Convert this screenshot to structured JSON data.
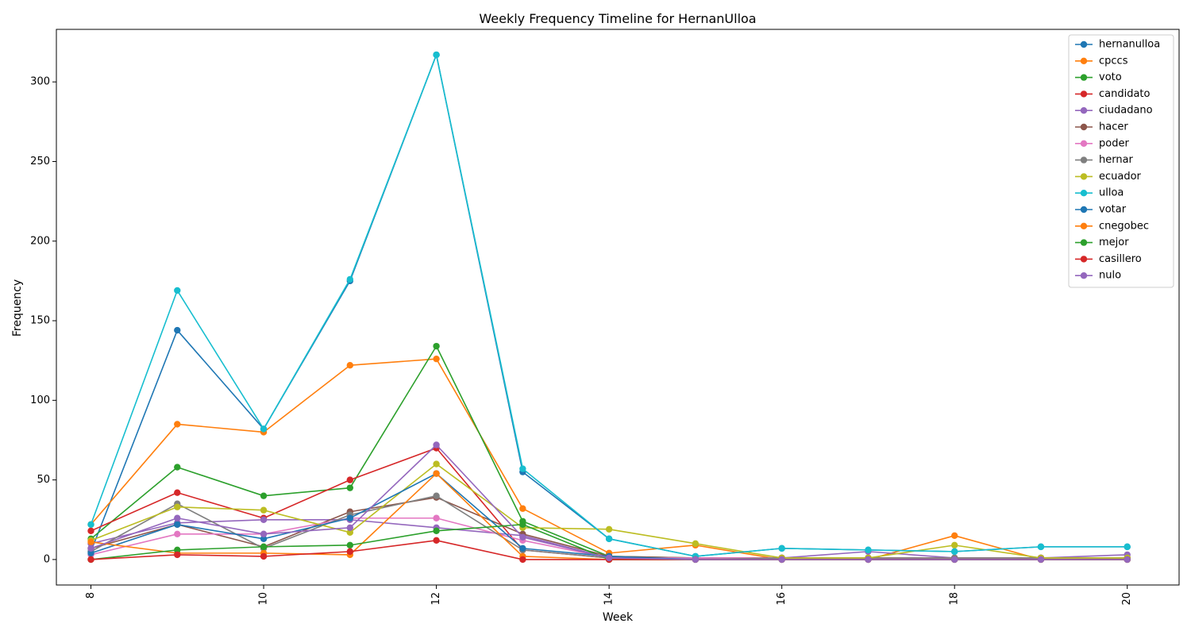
{
  "chart_data": {
    "type": "line",
    "title": "Weekly Frequency Timeline for HernanUlloa",
    "xlabel": "Week",
    "ylabel": "Frequency",
    "x": [
      8,
      9,
      10,
      11,
      12,
      13,
      14,
      15,
      16,
      17,
      18,
      19,
      20
    ],
    "xlim": [
      7.6,
      20.6
    ],
    "ylim": [
      -16,
      333
    ],
    "x_ticks": [
      8,
      10,
      12,
      14,
      16,
      18,
      20
    ],
    "y_ticks": [
      0,
      50,
      100,
      150,
      200,
      250,
      300
    ],
    "x_tick_rotation": "vertical",
    "grid": false,
    "legend_position": "top-right",
    "marker": "circle",
    "series": [
      {
        "name": "hernanulloa",
        "color": "#1f77b4",
        "values": [
          5,
          144,
          82,
          175,
          317,
          55,
          13,
          2,
          7,
          6,
          5,
          8,
          8
        ]
      },
      {
        "name": "cpccs",
        "color": "#ff7f0e",
        "values": [
          22,
          85,
          80,
          122,
          126,
          32,
          4,
          9,
          0,
          0,
          15,
          0,
          0
        ]
      },
      {
        "name": "voto",
        "color": "#2ca02c",
        "values": [
          13,
          58,
          40,
          45,
          134,
          24,
          2,
          1,
          1,
          1,
          1,
          1,
          1
        ]
      },
      {
        "name": "candidato",
        "color": "#d62728",
        "values": [
          18,
          42,
          26,
          50,
          70,
          6,
          1,
          1,
          1,
          1,
          1,
          1,
          1
        ]
      },
      {
        "name": "ciudadano",
        "color": "#9467bd",
        "values": [
          10,
          23,
          25,
          25,
          20,
          15,
          1,
          1,
          1,
          5,
          1,
          1,
          3
        ]
      },
      {
        "name": "hacer",
        "color": "#8c564b",
        "values": [
          7,
          22,
          8,
          30,
          39,
          16,
          2,
          1,
          1,
          1,
          1,
          1,
          1
        ]
      },
      {
        "name": "poder",
        "color": "#e377c2",
        "values": [
          3,
          16,
          16,
          26,
          26,
          12,
          1,
          1,
          1,
          1,
          1,
          1,
          1
        ]
      },
      {
        "name": "hernar",
        "color": "#7f7f7f",
        "values": [
          5,
          35,
          7,
          28,
          40,
          6,
          1,
          0,
          1,
          1,
          1,
          1,
          1
        ]
      },
      {
        "name": "ecuador",
        "color": "#bcbd22",
        "values": [
          12,
          33,
          31,
          17,
          60,
          20,
          19,
          10,
          1,
          1,
          9,
          1,
          1
        ]
      },
      {
        "name": "ulloa",
        "color": "#17becf",
        "values": [
          22,
          169,
          82,
          176,
          317,
          57,
          13,
          2,
          7,
          6,
          5,
          8,
          8
        ]
      },
      {
        "name": "votar",
        "color": "#1f77b4",
        "values": [
          4,
          22,
          13,
          26,
          54,
          7,
          2,
          0,
          0,
          0,
          0,
          0,
          0
        ]
      },
      {
        "name": "cnegobec",
        "color": "#ff7f0e",
        "values": [
          11,
          4,
          4,
          3,
          54,
          2,
          0,
          0,
          0,
          0,
          0,
          0,
          0
        ]
      },
      {
        "name": "mejor",
        "color": "#2ca02c",
        "values": [
          0,
          6,
          8,
          9,
          18,
          22,
          0,
          0,
          0,
          0,
          0,
          0,
          0
        ]
      },
      {
        "name": "casillero",
        "color": "#d62728",
        "values": [
          0,
          3,
          2,
          5,
          12,
          0,
          0,
          0,
          0,
          0,
          0,
          0,
          0
        ]
      },
      {
        "name": "nulo",
        "color": "#9467bd",
        "values": [
          7,
          26,
          16,
          20,
          72,
          14,
          1,
          0,
          0,
          0,
          0,
          0,
          0
        ]
      }
    ]
  }
}
